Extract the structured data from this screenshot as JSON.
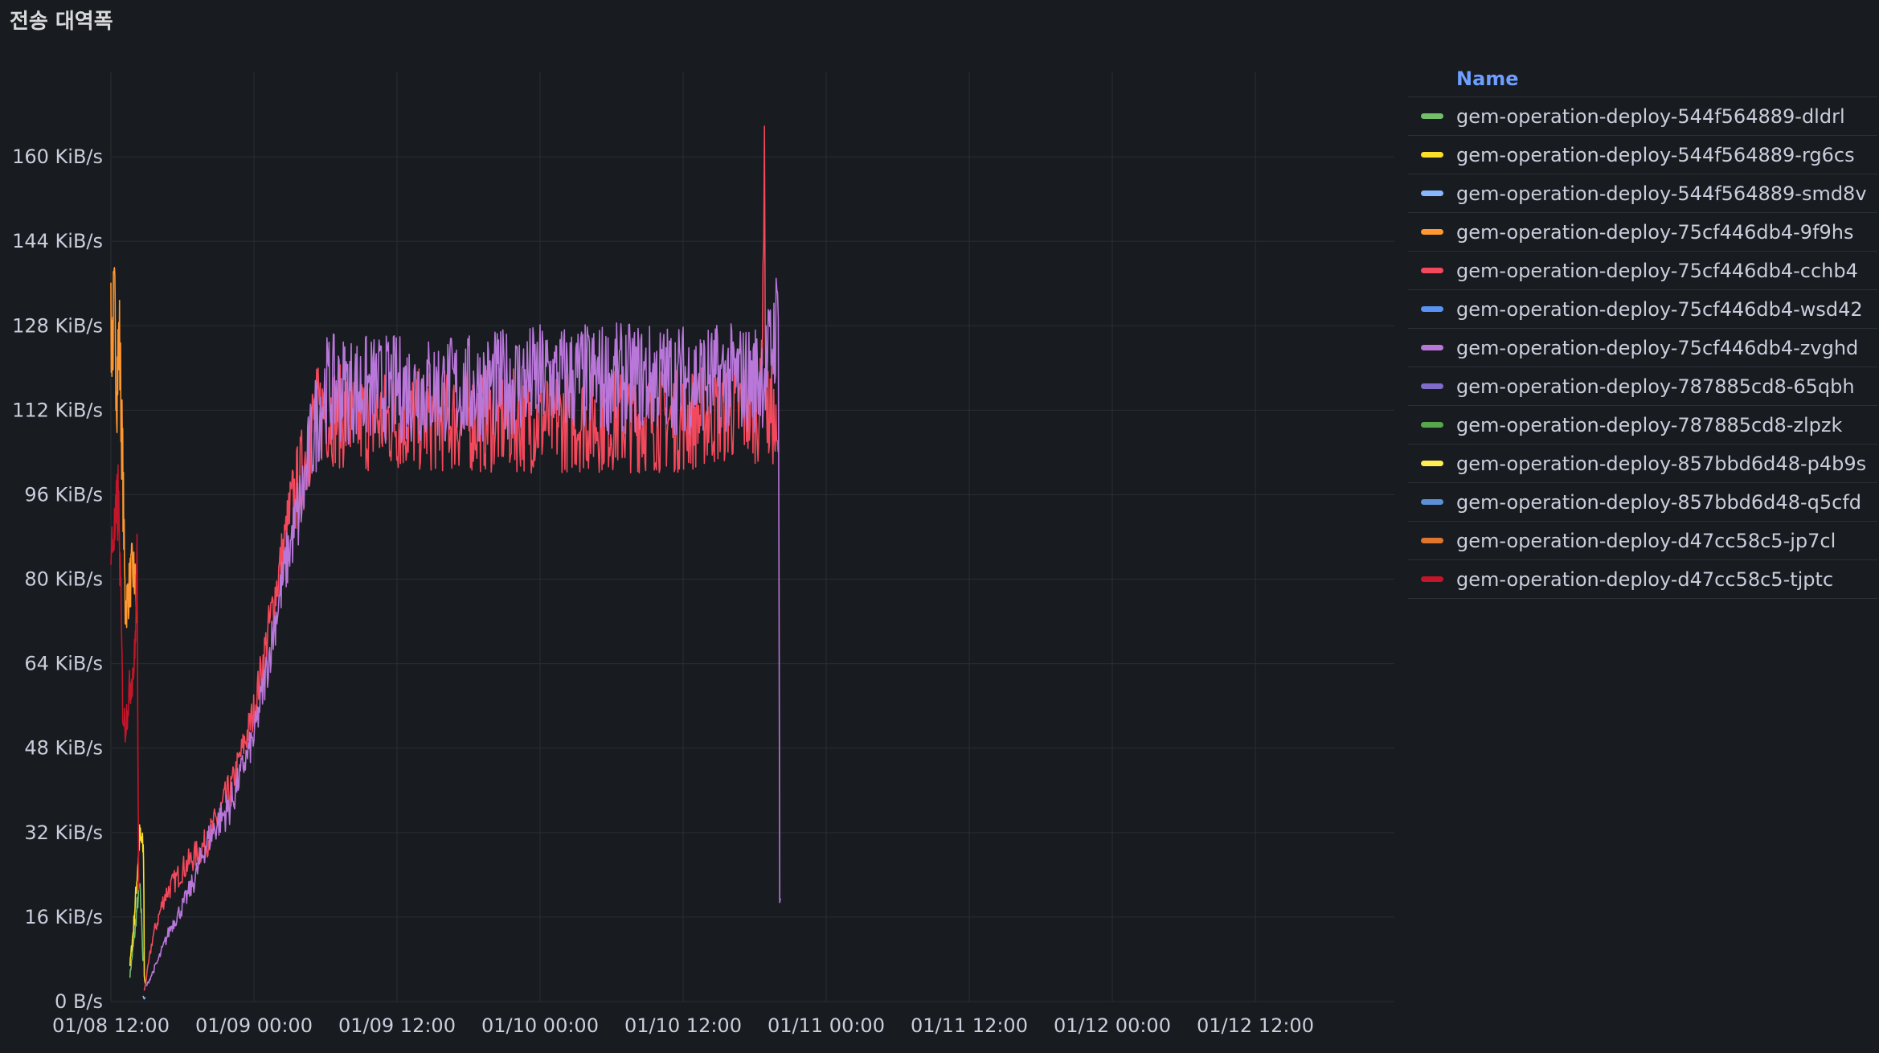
{
  "panel": {
    "title": "전송 대역폭"
  },
  "legend": {
    "header": "Name"
  },
  "chart_data": {
    "type": "line",
    "title": "전송 대역폭",
    "xlabel": "",
    "ylabel": "",
    "x_axis": {
      "type": "time",
      "min": "01/08 12:00",
      "max": "01/12 17:00",
      "ticks": [
        "01/08 12:00",
        "01/09 00:00",
        "01/09 12:00",
        "01/10 00:00",
        "01/10 12:00",
        "01/11 00:00",
        "01/11 12:00",
        "01/12 00:00",
        "01/12 12:00"
      ]
    },
    "y_axis": {
      "unit": "KiB/s",
      "min": 0,
      "max": 176,
      "ticks": [
        0,
        16,
        32,
        48,
        64,
        80,
        96,
        112,
        128,
        144,
        160
      ],
      "tick_labels": [
        "0 B/s",
        "16 KiB/s",
        "32 KiB/s",
        "48 KiB/s",
        "64 KiB/s",
        "80 KiB/s",
        "96 KiB/s",
        "112 KiB/s",
        "128 KiB/s",
        "144 KiB/s",
        "160 KiB/s"
      ]
    },
    "grid": true,
    "legend_position": "right",
    "series": [
      {
        "name": "gem-operation-deploy-544f564889-dldrl",
        "color": "#73bf69",
        "points": [
          [
            1.6,
            5
          ],
          [
            1.8,
            9
          ],
          [
            2.0,
            13
          ],
          [
            2.2,
            18
          ],
          [
            2.4,
            22
          ],
          [
            2.6,
            15
          ],
          [
            2.7,
            6
          ]
        ]
      },
      {
        "name": "gem-operation-deploy-544f564889-rg6cs",
        "color": "#fade2a",
        "points": [
          [
            1.6,
            7
          ],
          [
            1.9,
            14
          ],
          [
            2.2,
            24
          ],
          [
            2.4,
            31
          ],
          [
            2.6,
            30
          ],
          [
            2.75,
            28
          ],
          [
            2.8,
            5
          ],
          [
            2.9,
            3
          ]
        ]
      },
      {
        "name": "gem-operation-deploy-544f564889-smd8v",
        "color": "#8ab8ff",
        "points": [
          [
            2.7,
            1
          ],
          [
            2.8,
            0.5
          ],
          [
            2.9,
            1
          ]
        ]
      },
      {
        "name": "gem-operation-deploy-75cf446db4-9f9hs",
        "color": "#ff9830",
        "points": [
          [
            0.0,
            125
          ],
          [
            0.3,
            130
          ],
          [
            0.5,
            118
          ],
          [
            0.7,
            126
          ],
          [
            1.0,
            100
          ],
          [
            1.2,
            74
          ],
          [
            1.5,
            78
          ],
          [
            1.8,
            82
          ],
          [
            2.0,
            80
          ],
          [
            2.2,
            73
          ]
        ]
      },
      {
        "name": "gem-operation-deploy-75cf446db4-cchb4",
        "color": "#f2495c",
        "points": [
          [
            2.8,
            2
          ],
          [
            3.5,
            12
          ],
          [
            4.5,
            20
          ],
          [
            6,
            25
          ],
          [
            8,
            30
          ],
          [
            10,
            40
          ],
          [
            12,
            55
          ],
          [
            14,
            80
          ],
          [
            15,
            92
          ],
          [
            16,
            100
          ],
          [
            17,
            110
          ],
          [
            18,
            112
          ],
          [
            20,
            110
          ],
          [
            24,
            110
          ],
          [
            30,
            110
          ],
          [
            36,
            110
          ],
          [
            42,
            110
          ],
          [
            48,
            110
          ],
          [
            52,
            112
          ],
          [
            54.5,
            112
          ],
          [
            54.6,
            125
          ],
          [
            54.8,
            158
          ],
          [
            55,
            110
          ],
          [
            55.5,
            112
          ],
          [
            56,
            100
          ]
        ]
      },
      {
        "name": "gem-operation-deploy-75cf446db4-wsd42",
        "color": "#5794f2",
        "points": []
      },
      {
        "name": "gem-operation-deploy-75cf446db4-zvghd",
        "color": "#b877d9",
        "points": [
          [
            3.0,
            3
          ],
          [
            4.0,
            8
          ],
          [
            5.0,
            14
          ],
          [
            6,
            18
          ],
          [
            7,
            23
          ],
          [
            8,
            30
          ],
          [
            9,
            34
          ],
          [
            10,
            37
          ],
          [
            11,
            44
          ],
          [
            12,
            50
          ],
          [
            13,
            62
          ],
          [
            14,
            75
          ],
          [
            15,
            86
          ],
          [
            16,
            95
          ],
          [
            17,
            108
          ],
          [
            18,
            116
          ],
          [
            20,
            116
          ],
          [
            24,
            116
          ],
          [
            30,
            116
          ],
          [
            36,
            118
          ],
          [
            42,
            118
          ],
          [
            48,
            118
          ],
          [
            52,
            118
          ],
          [
            54,
            118
          ],
          [
            55,
            120
          ],
          [
            56,
            130
          ],
          [
            56.1,
            20
          ],
          [
            56.2,
            18
          ]
        ]
      },
      {
        "name": "gem-operation-deploy-787885cd8-65qbh",
        "color": "#7f6bc9",
        "points": []
      },
      {
        "name": "gem-operation-deploy-787885cd8-zlpzk",
        "color": "#56a64b",
        "points": []
      },
      {
        "name": "gem-operation-deploy-857bbd6d48-p4b9s",
        "color": "#ffee52",
        "points": []
      },
      {
        "name": "gem-operation-deploy-857bbd6d48-q5cfd",
        "color": "#5b8fd6",
        "points": []
      },
      {
        "name": "gem-operation-deploy-d47cc58c5-jp7cl",
        "color": "#e0752d",
        "points": []
      },
      {
        "name": "gem-operation-deploy-d47cc58c5-tjptc",
        "color": "#c4162a",
        "points": [
          [
            0.0,
            85
          ],
          [
            0.4,
            90
          ],
          [
            0.6,
            95
          ],
          [
            0.8,
            80
          ],
          [
            1.0,
            55
          ],
          [
            1.2,
            52
          ],
          [
            1.5,
            58
          ],
          [
            1.8,
            62
          ],
          [
            2.0,
            65
          ],
          [
            2.2,
            85
          ],
          [
            2.3,
            30
          ],
          [
            2.35,
            17
          ]
        ]
      }
    ]
  }
}
